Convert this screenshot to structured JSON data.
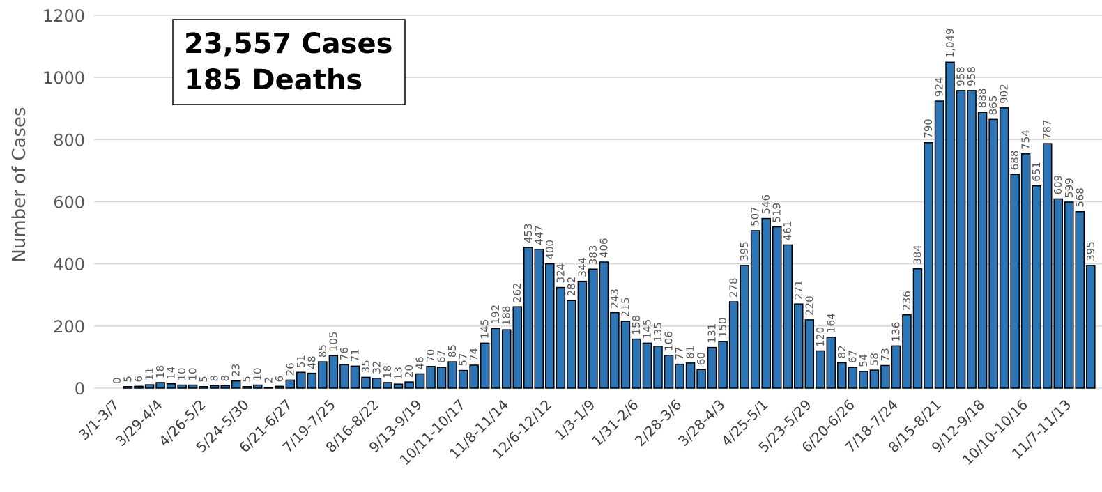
{
  "chart_data": {
    "type": "bar",
    "y_label": "Number of Cases",
    "annotation": [
      "23,557 Cases",
      "185 Deaths"
    ],
    "color": "#2e75b6",
    "grid": true,
    "ylim": [
      0,
      1200
    ],
    "yticks": [
      0,
      200,
      400,
      600,
      800,
      1000,
      1200
    ],
    "categories": [
      "3/1-3/7",
      null,
      null,
      null,
      "3/29-4/4",
      null,
      null,
      null,
      "4/26-5/2",
      null,
      null,
      null,
      "5/24-5/30",
      null,
      null,
      null,
      "6/21-6/27",
      null,
      null,
      null,
      "7/19-7/25",
      null,
      null,
      null,
      "8/16-8/22",
      null,
      null,
      null,
      "9/13-9/19",
      null,
      null,
      null,
      "10/11-10/17",
      null,
      null,
      null,
      "11/8-11/14",
      null,
      null,
      null,
      "12/6-12/12",
      null,
      null,
      null,
      "1/3-1/9",
      null,
      null,
      null,
      "1/31-2/6",
      null,
      null,
      null,
      "2/28-3/6",
      null,
      null,
      null,
      "3/28-4/3",
      null,
      null,
      null,
      "4/25-5/1",
      null,
      null,
      null,
      "5/23-5/29",
      null,
      null,
      null,
      "6/20-6/26",
      null,
      null,
      null,
      "7/18-7/24",
      null,
      null,
      null,
      "8/15-8/21",
      null,
      null,
      null,
      "9/12-9/18",
      null,
      null,
      null,
      "10/10-10/16",
      null,
      null,
      null,
      "11/7-11/13",
      null,
      null
    ],
    "values": [
      0,
      5,
      6,
      11,
      18,
      14,
      10,
      10,
      5,
      8,
      8,
      23,
      5,
      10,
      2,
      6,
      26,
      51,
      48,
      85,
      105,
      76,
      71,
      35,
      32,
      18,
      13,
      20,
      46,
      70,
      67,
      85,
      57,
      74,
      145,
      192,
      188,
      262,
      453,
      447,
      400,
      324,
      282,
      344,
      383,
      406,
      243,
      215,
      158,
      145,
      135,
      106,
      77,
      81,
      60,
      131,
      150,
      278,
      395,
      507,
      546,
      519,
      461,
      271,
      220,
      120,
      164,
      82,
      67,
      54,
      58,
      73,
      136,
      236,
      384,
      790,
      924,
      1049,
      958,
      958,
      888,
      865,
      902,
      688,
      754,
      651,
      787,
      609,
      599,
      568,
      395
    ],
    "value_labels": [
      "0",
      "5",
      "6",
      "11",
      "18",
      "14",
      "10",
      "10",
      "5",
      "8",
      "8",
      "23",
      "5",
      "10",
      "2",
      "6",
      "26",
      "51",
      "48",
      "85",
      "105",
      "76",
      "71",
      "35",
      "32",
      "18",
      "13",
      "20",
      "46",
      "70",
      "67",
      "85",
      "57",
      "74",
      "145",
      "192",
      "188",
      "262",
      "453",
      "447",
      "400",
      "324",
      "282",
      "344",
      "383",
      "406",
      "243",
      "215",
      "158",
      "145",
      "135",
      "106",
      "77",
      "81",
      "60",
      "131",
      "150",
      "278",
      "395",
      "507",
      "546",
      "519",
      "461",
      "271",
      "220",
      "120",
      "164",
      "82",
      "67",
      "54",
      "58",
      "73",
      "136",
      "236",
      "384",
      "790",
      "924",
      "1,049",
      "958",
      "958",
      "888",
      "865",
      "902",
      "688",
      "754",
      "651",
      "787",
      "609",
      "599",
      "568",
      "395"
    ]
  }
}
